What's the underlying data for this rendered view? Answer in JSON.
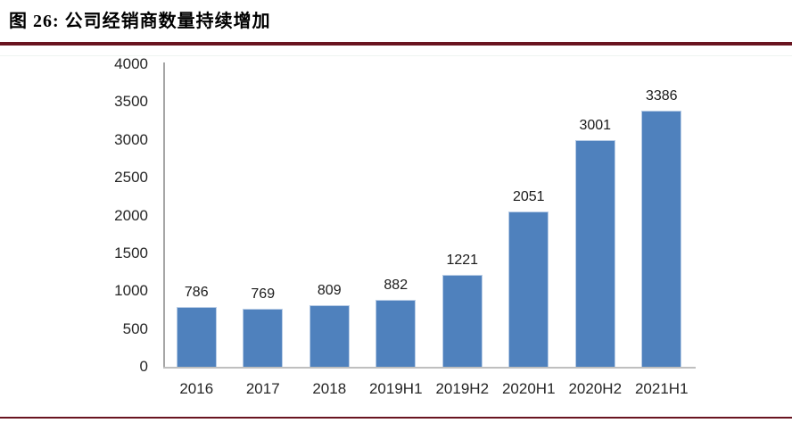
{
  "page": {
    "title": "图 26: 公司经销商数量持续增加"
  },
  "colors": {
    "accent_rule": "#691420",
    "bar_fill": "#4f81bd",
    "bar_border": "#b9cde6",
    "y_axis_line": "#a6a6a6",
    "x_axis_line": "#bfbfbf",
    "tick_text": "#262626",
    "label_text": "#1a1a1a"
  },
  "chart_data": {
    "type": "bar",
    "title": "图 26: 公司经销商数量持续增加",
    "categories": [
      "2016",
      "2017",
      "2018",
      "2019H1",
      "2019H2",
      "2020H1",
      "2020H2",
      "2021H1"
    ],
    "values": [
      786,
      769,
      809,
      882,
      1221,
      2051,
      3001,
      3386
    ],
    "data_labels": [
      786,
      769,
      809,
      882,
      1221,
      2051,
      3001,
      3386
    ],
    "xlabel": "",
    "ylabel": "",
    "ylim": [
      0,
      4000
    ],
    "yticks": [
      0,
      500,
      1000,
      1500,
      2000,
      2500,
      3000,
      3500,
      4000
    ],
    "grid": false,
    "legend": false,
    "bar_color": "#4f81bd"
  }
}
